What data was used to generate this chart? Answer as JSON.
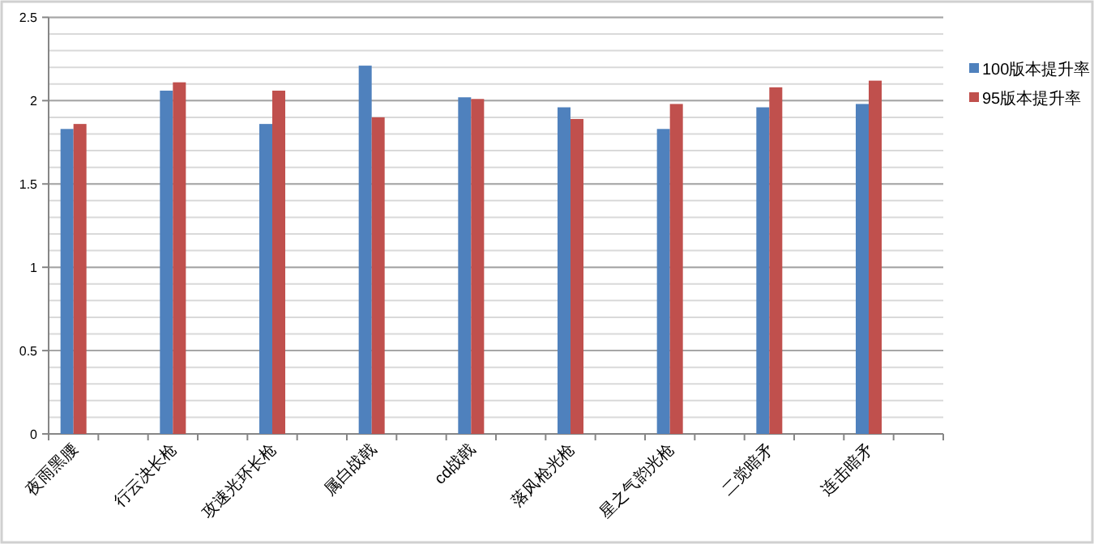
{
  "chart_data": {
    "type": "bar",
    "categories": [
      "夜雨黑腰",
      null,
      "行云决长枪",
      null,
      "攻速光环长枪",
      null,
      "属白战戟",
      null,
      "cd战戟",
      null,
      "落风枪光枪",
      null,
      "星之气韵光枪",
      null,
      "二觉暗矛",
      null,
      "连击暗矛",
      null
    ],
    "series": [
      {
        "name": "100版本提升率",
        "color": "#4f81bd",
        "values": [
          1.83,
          null,
          2.06,
          null,
          1.86,
          null,
          2.21,
          null,
          2.02,
          null,
          1.96,
          null,
          1.83,
          null,
          1.96,
          null,
          1.98,
          null
        ]
      },
      {
        "name": "95版本提升率",
        "color": "#c0504d",
        "values": [
          1.86,
          null,
          2.11,
          null,
          2.06,
          null,
          1.9,
          null,
          2.01,
          null,
          1.89,
          null,
          1.98,
          null,
          2.08,
          null,
          2.12,
          null
        ]
      }
    ],
    "ylim": [
      0,
      2.5
    ],
    "yticks": [
      0,
      0.5,
      1,
      1.5,
      2,
      2.5
    ],
    "grid": "y",
    "legend": "right"
  }
}
